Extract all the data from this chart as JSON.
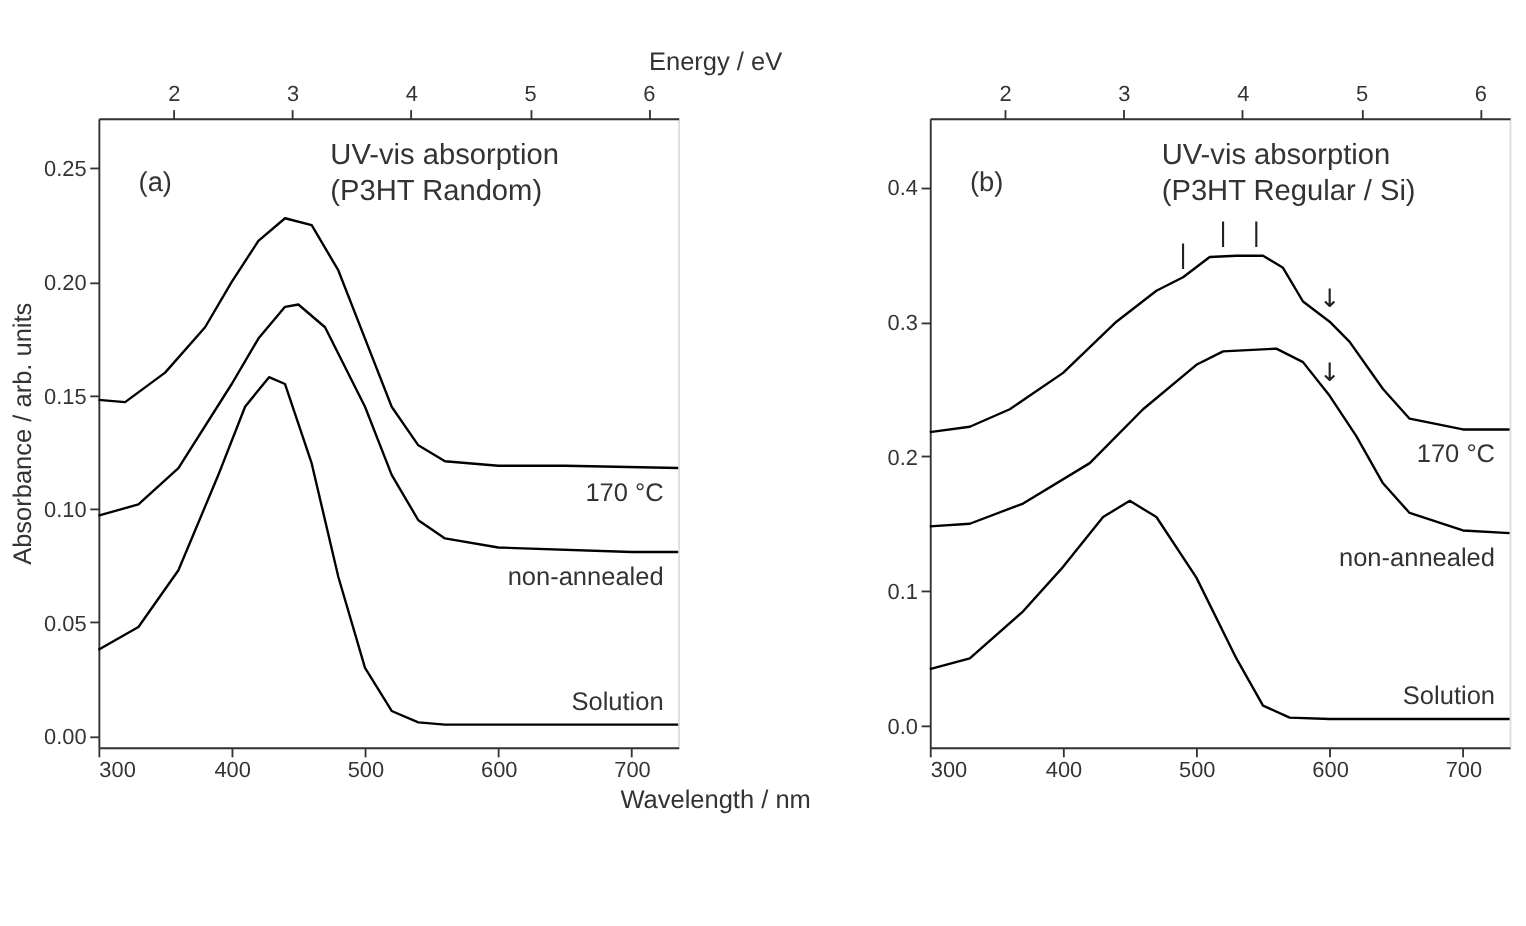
{
  "chart_data": [
    {
      "type": "line",
      "title": "UV-vis absorption",
      "subtitle": "(P3HT Random)",
      "xlabel": "Wavelength / nm",
      "x2label": "Energy / eV",
      "ylabel": "Absorbance / arb. units",
      "annotations": [
        "(a)"
      ],
      "series": [
        {
          "name": "170 °C",
          "color": "#000000",
          "x": [
            300,
            320,
            350,
            380,
            400,
            420,
            440,
            460,
            480,
            500,
            520,
            540,
            560,
            600,
            650,
            735
          ],
          "values": [
            0.148,
            0.147,
            0.16,
            0.18,
            0.2,
            0.218,
            0.228,
            0.225,
            0.205,
            0.175,
            0.145,
            0.128,
            0.121,
            0.119,
            0.119,
            0.118
          ]
        },
        {
          "name": "non-annealed",
          "color": "#000000",
          "x": [
            300,
            330,
            360,
            400,
            420,
            440,
            450,
            470,
            500,
            520,
            540,
            560,
            600,
            700,
            735
          ],
          "values": [
            0.097,
            0.102,
            0.118,
            0.155,
            0.175,
            0.189,
            0.19,
            0.18,
            0.145,
            0.115,
            0.095,
            0.087,
            0.083,
            0.081,
            0.081
          ]
        },
        {
          "name": "Solution",
          "color": "#000000",
          "x": [
            300,
            330,
            360,
            390,
            410,
            428,
            440,
            460,
            480,
            500,
            520,
            540,
            560,
            735
          ],
          "values": [
            0.038,
            0.048,
            0.073,
            0.115,
            0.145,
            0.158,
            0.155,
            0.12,
            0.07,
            0.03,
            0.011,
            0.006,
            0.005,
            0.005
          ]
        }
      ],
      "xlim": [
        300,
        735
      ],
      "xticks": [
        300,
        400,
        500,
        600,
        700
      ],
      "x2lim": [
        1.37,
        6.25
      ],
      "x2ticks": [
        2,
        3,
        4,
        5,
        6
      ],
      "ylim": [
        -0.005,
        0.272
      ],
      "yticks": [
        {
          "value": 0,
          "label": "0.00"
        },
        0.05,
        {
          "value": 0.1,
          "label": "0.10"
        },
        0.15,
        {
          "value": 0.2,
          "label": "0.20"
        },
        0.25
      ]
    },
    {
      "type": "line",
      "title": "UV-vis absorption",
      "subtitle": "(P3HT Regular / Si)",
      "annotations": [
        "(b)",
        {
          "text": "|",
          "x": 490,
          "y": 0.333
        },
        {
          "text": "|",
          "x": 520,
          "y": 0.349
        },
        {
          "text": "|",
          "x": 545,
          "y": 0.349
        },
        {
          "text": "↓",
          "x": 600,
          "y": 0.3
        },
        {
          "text": "↓",
          "x": 600,
          "y": 0.245
        }
      ],
      "series": [
        {
          "name": "170 °C",
          "color": "#000000",
          "x": [
            300,
            330,
            360,
            400,
            440,
            470,
            490,
            510,
            530,
            550,
            565,
            580,
            600,
            615,
            640,
            660,
            700,
            735
          ],
          "values": [
            0.218,
            0.222,
            0.235,
            0.262,
            0.3,
            0.323,
            0.333,
            0.348,
            0.349,
            0.349,
            0.34,
            0.315,
            0.3,
            0.285,
            0.25,
            0.228,
            0.22,
            0.22
          ]
        },
        {
          "name": "non-annealed",
          "color": "#000000",
          "x": [
            300,
            330,
            370,
            420,
            460,
            500,
            520,
            560,
            580,
            600,
            620,
            640,
            660,
            700,
            735
          ],
          "values": [
            0.148,
            0.15,
            0.165,
            0.195,
            0.235,
            0.268,
            0.278,
            0.28,
            0.27,
            0.245,
            0.215,
            0.18,
            0.158,
            0.145,
            0.143
          ]
        },
        {
          "name": "Solution",
          "color": "#000000",
          "x": [
            300,
            330,
            370,
            400,
            430,
            450,
            470,
            500,
            530,
            550,
            570,
            600,
            735
          ],
          "values": [
            0.042,
            0.05,
            0.085,
            0.118,
            0.155,
            0.167,
            0.155,
            0.11,
            0.05,
            0.015,
            0.006,
            0.005,
            0.005
          ]
        }
      ],
      "xlim": [
        300,
        735
      ],
      "xticks": [
        300,
        400,
        500,
        600,
        700
      ],
      "x2lim": [
        1.37,
        6.25
      ],
      "x2ticks": [
        2,
        3,
        4,
        5,
        6
      ],
      "ylim": [
        -0.016,
        0.451
      ],
      "yticks": [
        {
          "value": 0,
          "label": "0.0"
        },
        0.1,
        0.2,
        0.3,
        0.4
      ]
    }
  ]
}
